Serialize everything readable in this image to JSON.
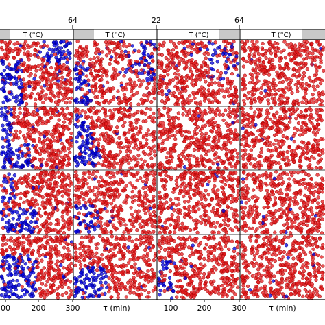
{
  "chart_data": {
    "type": "scatter",
    "top_tick_labels": [
      "64",
      "22",
      "64"
    ],
    "strip_labels": [
      "T (°C)",
      "T (°C)",
      "T (°C)",
      "T (°C)"
    ],
    "xlabel": "τ (min)",
    "bottom_tick_labels": [
      "00",
      "200",
      "300",
      "100",
      "200",
      "300",
      "100",
      "200",
      "300"
    ],
    "series": [
      {
        "color": "#e41a1c"
      },
      {
        "color": "#0000dd"
      }
    ],
    "grid_rows": 4,
    "grid_cols": 4,
    "xlim": [
      0,
      300
    ]
  }
}
